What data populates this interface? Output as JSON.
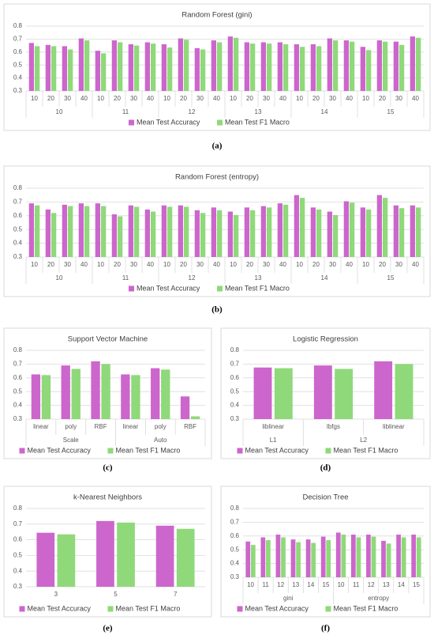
{
  "chart_data": [
    {
      "type": "bar",
      "title": "Random Forest (gini)",
      "caption": "(a)",
      "groups": [
        {
          "name": 10,
          "categories": [
            10,
            20,
            30,
            40
          ]
        },
        {
          "name": 11,
          "categories": [
            10,
            20,
            30,
            40
          ]
        },
        {
          "name": 12,
          "categories": [
            10,
            20,
            30,
            40
          ]
        },
        {
          "name": 13,
          "categories": [
            10,
            20,
            30,
            40
          ]
        },
        {
          "name": 14,
          "categories": [
            10,
            20,
            30,
            40
          ]
        },
        {
          "name": 15,
          "categories": [
            10,
            20,
            30,
            40
          ]
        }
      ],
      "series": [
        {
          "name": "Mean Test Accuracy",
          "color": "#cc66cc",
          "values": [
            0.67,
            0.655,
            0.645,
            0.705,
            0.61,
            0.69,
            0.66,
            0.675,
            0.66,
            0.705,
            0.63,
            0.69,
            0.72,
            0.675,
            0.675,
            0.675,
            0.66,
            0.66,
            0.705,
            0.69,
            0.64,
            0.69,
            0.68,
            0.72
          ]
        },
        {
          "name": "Mean Test F1 Macro",
          "color": "#8fd97a",
          "values": [
            0.645,
            0.645,
            0.62,
            0.69,
            0.59,
            0.675,
            0.65,
            0.665,
            0.635,
            0.695,
            0.62,
            0.675,
            0.71,
            0.665,
            0.665,
            0.66,
            0.64,
            0.645,
            0.69,
            0.68,
            0.615,
            0.68,
            0.655,
            0.71
          ]
        }
      ],
      "ylim": [
        0.3,
        0.8
      ],
      "yticks": [
        0.3,
        0.4,
        0.5,
        0.6,
        0.7,
        0.8
      ],
      "grid": true,
      "legend": "bottom"
    },
    {
      "type": "bar",
      "title": "Random Forest (entropy)",
      "caption": "(b)",
      "groups": [
        {
          "name": 10,
          "categories": [
            10,
            20,
            30,
            40
          ]
        },
        {
          "name": 11,
          "categories": [
            10,
            20,
            30,
            40
          ]
        },
        {
          "name": 12,
          "categories": [
            10,
            20,
            30,
            40
          ]
        },
        {
          "name": 13,
          "categories": [
            10,
            20,
            30,
            40
          ]
        },
        {
          "name": 14,
          "categories": [
            10,
            20,
            30,
            40
          ]
        },
        {
          "name": 15,
          "categories": [
            10,
            20,
            30,
            40
          ]
        }
      ],
      "series": [
        {
          "name": "Mean Test Accuracy",
          "color": "#cc66cc",
          "values": [
            0.69,
            0.645,
            0.68,
            0.69,
            0.69,
            0.61,
            0.675,
            0.645,
            0.675,
            0.675,
            0.64,
            0.66,
            0.63,
            0.66,
            0.67,
            0.69,
            0.75,
            0.66,
            0.63,
            0.705,
            0.66,
            0.75,
            0.675,
            0.675
          ]
        },
        {
          "name": "Mean Test F1 Macro",
          "color": "#8fd97a",
          "values": [
            0.675,
            0.62,
            0.67,
            0.67,
            0.67,
            0.595,
            0.665,
            0.63,
            0.665,
            0.665,
            0.62,
            0.64,
            0.605,
            0.64,
            0.66,
            0.68,
            0.73,
            0.645,
            0.605,
            0.695,
            0.645,
            0.73,
            0.655,
            0.66
          ]
        }
      ],
      "ylim": [
        0.3,
        0.8
      ],
      "yticks": [
        0.3,
        0.4,
        0.5,
        0.6,
        0.7,
        0.8
      ],
      "grid": true,
      "legend": "bottom"
    },
    {
      "type": "bar",
      "title": "Support Vector Machine",
      "caption": "(c)",
      "groups": [
        {
          "name": "Scale",
          "categories": [
            "linear",
            "poly",
            "RBF"
          ]
        },
        {
          "name": "Auto",
          "categories": [
            "linear",
            "poly",
            "RBF"
          ]
        }
      ],
      "series": [
        {
          "name": "Mean Test Accuracy",
          "color": "#cc66cc",
          "values": [
            0.625,
            0.69,
            0.72,
            0.625,
            0.67,
            0.465
          ]
        },
        {
          "name": "Mean Test F1 Macro",
          "color": "#8fd97a",
          "values": [
            0.62,
            0.665,
            0.7,
            0.62,
            0.66,
            0.32
          ]
        }
      ],
      "ylim": [
        0.3,
        0.8
      ],
      "yticks": [
        0.3,
        0.4,
        0.5,
        0.6,
        0.7,
        0.8
      ],
      "grid": true,
      "legend": "bottom"
    },
    {
      "type": "bar",
      "title": "Logistic Regression",
      "caption": "(d)",
      "groups": [
        {
          "name": "L1",
          "categories": [
            "liblinear"
          ]
        },
        {
          "name": "L2",
          "categories": [
            "lbfgs",
            "liblinear"
          ]
        }
      ],
      "series": [
        {
          "name": "Mean Test Accuracy",
          "color": "#cc66cc",
          "values": [
            0.675,
            0.69,
            0.72
          ]
        },
        {
          "name": "Mean Test F1 Macro",
          "color": "#8fd97a",
          "values": [
            0.67,
            0.665,
            0.7
          ]
        }
      ],
      "ylim": [
        0.3,
        0.8
      ],
      "yticks": [
        0.3,
        0.4,
        0.5,
        0.6,
        0.7,
        0.8
      ],
      "grid": true,
      "legend": "bottom"
    },
    {
      "type": "bar",
      "title": "k-Nearest Neighbors",
      "caption": "(e)",
      "categories": [
        3,
        5,
        7
      ],
      "series": [
        {
          "name": "Mean Test Accuracy",
          "color": "#cc66cc",
          "values": [
            0.645,
            0.72,
            0.69
          ]
        },
        {
          "name": "Mean Test F1 Macro",
          "color": "#8fd97a",
          "values": [
            0.635,
            0.71,
            0.67
          ]
        }
      ],
      "ylim": [
        0.3,
        0.8
      ],
      "yticks": [
        0.3,
        0.4,
        0.5,
        0.6,
        0.7,
        0.8
      ],
      "grid": true,
      "legend": "bottom"
    },
    {
      "type": "bar",
      "title": "Decision Tree",
      "caption": "(f)",
      "groups": [
        {
          "name": "gini",
          "categories": [
            10,
            11,
            12,
            13,
            14,
            15
          ]
        },
        {
          "name": "entropy",
          "categories": [
            10,
            11,
            12,
            13,
            14,
            15
          ]
        }
      ],
      "series": [
        {
          "name": "Mean Test Accuracy",
          "color": "#cc66cc",
          "values": [
            0.56,
            0.59,
            0.61,
            0.575,
            0.575,
            0.595,
            0.625,
            0.61,
            0.61,
            0.565,
            0.61,
            0.61
          ]
        },
        {
          "name": "Mean Test F1 Macro",
          "color": "#8fd97a",
          "values": [
            0.535,
            0.57,
            0.59,
            0.555,
            0.55,
            0.57,
            0.61,
            0.59,
            0.595,
            0.545,
            0.59,
            0.59
          ]
        }
      ],
      "ylim": [
        0.3,
        0.8
      ],
      "yticks": [
        0.3,
        0.4,
        0.5,
        0.6,
        0.7,
        0.8
      ],
      "grid": true,
      "legend": "bottom"
    }
  ]
}
